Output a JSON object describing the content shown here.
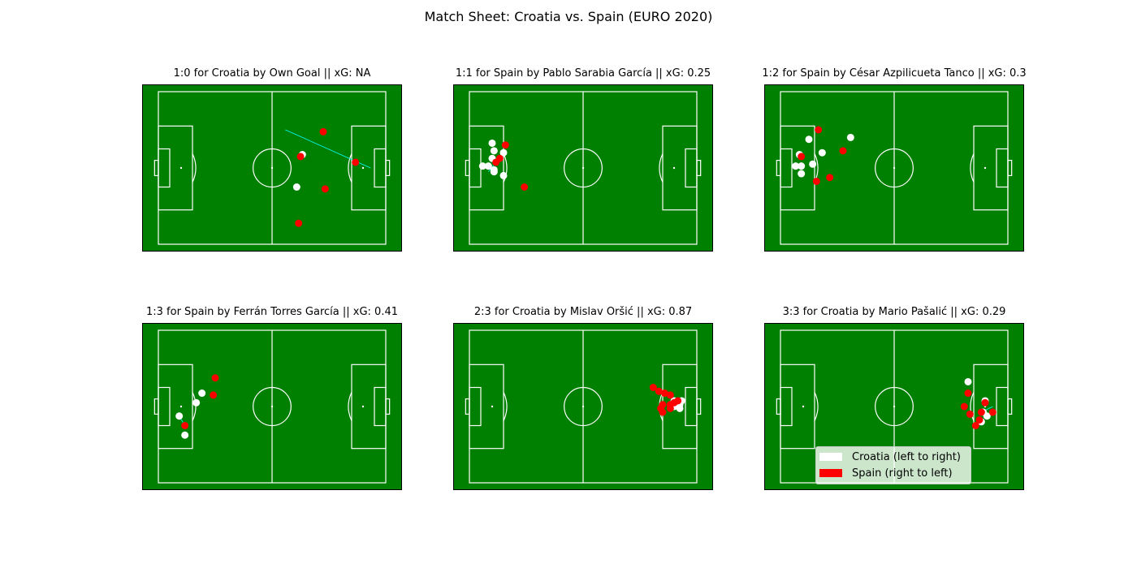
{
  "suptitle": "Match Sheet: Croatia vs. Spain (EURO 2020)",
  "colors": {
    "pitch": "#008000",
    "lines": "#ffffff",
    "croatia": "#ffffff",
    "spain": "#ff0000",
    "pass_line": "#00ffff"
  },
  "legend": [
    {
      "label": "Croatia (left to right)",
      "color": "#ffffff"
    },
    {
      "label": "Spain (right to left)",
      "color": "#ff0000"
    }
  ],
  "chart_data": [
    {
      "type": "scatter",
      "title": "1:0 for Croatia by Own Goal || xG: NA",
      "xlim": [
        0,
        120
      ],
      "ylim": [
        0,
        80
      ],
      "series": [
        {
          "name": "Croatia (left to right)",
          "points": [
            [
              73,
              30
            ],
            [
              76,
              47
            ]
          ]
        },
        {
          "name": "Spain (right to left)",
          "points": [
            [
              87,
              59
            ],
            [
              75,
              46
            ],
            [
              104,
              43
            ],
            [
              88,
              29
            ],
            [
              74,
              11
            ]
          ]
        }
      ],
      "annotations": [
        {
          "type": "line",
          "from": [
            67,
            60
          ],
          "to": [
            112,
            40
          ]
        }
      ]
    },
    {
      "type": "scatter",
      "title": "1:1 for Spain by Pablo Sarabia García || xG: 0.25",
      "xlim": [
        0,
        120
      ],
      "ylim": [
        0,
        80
      ],
      "series": [
        {
          "name": "Croatia (left to right)",
          "points": [
            [
              12,
              53
            ],
            [
              13,
              49
            ],
            [
              18,
              48
            ],
            [
              12,
              45
            ],
            [
              10,
              41
            ],
            [
              13,
              39
            ],
            [
              13,
              38
            ],
            [
              18,
              36
            ],
            [
              7,
              41
            ]
          ]
        },
        {
          "name": "Spain (right to left)",
          "points": [
            [
              19,
              52
            ],
            [
              16,
              45
            ],
            [
              14,
              43
            ],
            [
              29,
              30
            ]
          ]
        }
      ],
      "annotations": [
        {
          "type": "line",
          "from": [
            10,
            38
          ],
          "to": [
            14,
            43
          ]
        }
      ]
    },
    {
      "type": "scatter",
      "title": "1:2 for Spain by César Azpilicueta Tanco || xG: 0.3",
      "xlim": [
        0,
        120
      ],
      "ylim": [
        0,
        80
      ],
      "series": [
        {
          "name": "Croatia (left to right)",
          "points": [
            [
              37,
              56
            ],
            [
              15,
              55
            ],
            [
              22,
              48
            ],
            [
              10,
              47
            ],
            [
              17,
              42
            ],
            [
              11,
              41
            ],
            [
              8,
              41
            ],
            [
              11,
              37
            ]
          ]
        },
        {
          "name": "Spain (right to left)",
          "points": [
            [
              20,
              60
            ],
            [
              33,
              49
            ],
            [
              11,
              46
            ],
            [
              26,
              35
            ],
            [
              19,
              33
            ]
          ]
        }
      ],
      "annotations": []
    },
    {
      "type": "scatter",
      "title": "1:3 for Spain by Ferrán Torres García || xG: 0.41",
      "xlim": [
        0,
        120
      ],
      "ylim": [
        0,
        80
      ],
      "series": [
        {
          "name": "Croatia (left to right)",
          "points": [
            [
              23,
              47
            ],
            [
              20,
              42
            ],
            [
              11,
              35
            ],
            [
              14,
              25
            ]
          ]
        },
        {
          "name": "Spain (right to left)",
          "points": [
            [
              30,
              55
            ],
            [
              29,
              46
            ],
            [
              14,
              30
            ]
          ]
        }
      ],
      "annotations": [
        {
          "type": "line",
          "from": [
            11,
            35
          ],
          "to": [
            14,
            30
          ]
        }
      ]
    },
    {
      "type": "scatter",
      "title": "2:3 for Croatia by Mislav Oršić || xG: 0.87",
      "xlim": [
        0,
        120
      ],
      "ylim": [
        0,
        80
      ],
      "series": [
        {
          "name": "Croatia (left to right)",
          "points": [
            [
              108,
              43
            ],
            [
              111,
              41
            ],
            [
              112,
              43
            ],
            [
              108,
              40
            ],
            [
              111,
              39
            ]
          ]
        },
        {
          "name": "Spain (right to left)",
          "points": [
            [
              97,
              50
            ],
            [
              100,
              48
            ],
            [
              103,
              47
            ],
            [
              106,
              46
            ],
            [
              102,
              41
            ],
            [
              101,
              39
            ],
            [
              106,
              41
            ],
            [
              108,
              42
            ],
            [
              110,
              43
            ],
            [
              102,
              37
            ],
            [
              106,
              39
            ]
          ]
        }
      ],
      "annotations": []
    },
    {
      "type": "scatter",
      "title": "3:3 for Croatia by Mario Pašalić || xG: 0.29",
      "xlim": [
        0,
        120
      ],
      "ylim": [
        0,
        80
      ],
      "series": [
        {
          "name": "Croatia (left to right)",
          "points": [
            [
              99,
              53
            ],
            [
              108,
              43
            ],
            [
              109,
              35
            ],
            [
              106,
              32
            ],
            [
              107,
              37
            ]
          ]
        },
        {
          "name": "Spain (right to left)",
          "points": [
            [
              99,
              47
            ],
            [
              108,
              42
            ],
            [
              97,
              40
            ],
            [
              100,
              36
            ],
            [
              106,
              37
            ],
            [
              112,
              37
            ],
            [
              105,
              33
            ],
            [
              103,
              30
            ]
          ]
        }
      ],
      "annotations": [
        {
          "type": "line",
          "from": [
            106,
            37
          ],
          "to": [
            112,
            40
          ]
        }
      ]
    }
  ]
}
